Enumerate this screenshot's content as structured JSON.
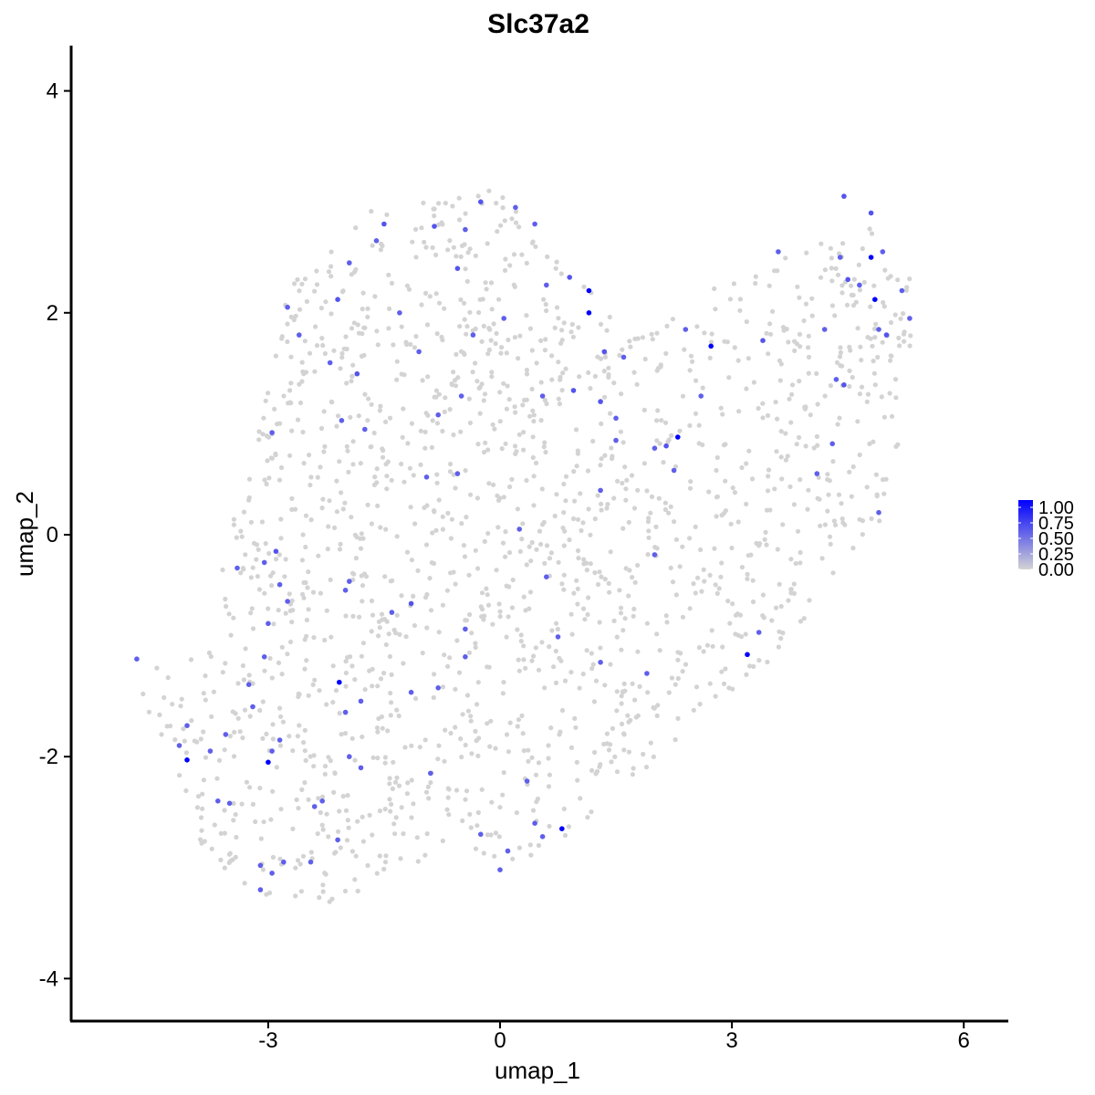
{
  "chart_data": {
    "type": "scatter",
    "title": "Slc37a2",
    "xlabel": "umap_1",
    "ylabel": "umap_2",
    "xlim": [
      -6.0,
      6.6
    ],
    "ylim": [
      -4.3,
      4.4
    ],
    "x_ticks": [
      -3,
      0,
      3,
      6
    ],
    "y_ticks": [
      -4,
      -2,
      0,
      2,
      4
    ],
    "x_tick_labels": [
      "-3",
      "0",
      "3",
      "6"
    ],
    "y_tick_labels": [
      "-4",
      "-2",
      "0",
      "2",
      "4"
    ],
    "grid": false,
    "colors": {
      "low": "#d3d3d3",
      "high": "#0000ff"
    },
    "legend": {
      "placement": "right",
      "type": "colorbar",
      "ticks": [
        1.0,
        0.75,
        0.5,
        0.25,
        0.0
      ],
      "labels": [
        "1.00",
        "0.75",
        "0.50",
        "0.25",
        "0.00"
      ]
    },
    "background_points": {
      "count": 1700
    },
    "expressing_points": [
      {
        "x": 1.15,
        "y": 2.2,
        "v": 1.0
      },
      {
        "x": 1.15,
        "y": 2.0,
        "v": 1.0
      },
      {
        "x": 2.73,
        "y": 1.7,
        "v": 1.0
      },
      {
        "x": 2.3,
        "y": 0.88,
        "v": 1.0
      },
      {
        "x": 4.8,
        "y": 2.5,
        "v": 1.0
      },
      {
        "x": 4.85,
        "y": 2.12,
        "v": 1.0
      },
      {
        "x": 3.2,
        "y": -1.08,
        "v": 1.0
      },
      {
        "x": -2.08,
        "y": -1.33,
        "v": 1.0
      },
      {
        "x": -3.0,
        "y": -2.05,
        "v": 1.0
      },
      {
        "x": -4.05,
        "y": -2.03,
        "v": 1.0
      },
      {
        "x": 0.8,
        "y": -2.65,
        "v": 1.0
      },
      {
        "x": -1.5,
        "y": 2.8,
        "v": 0.6
      },
      {
        "x": -0.85,
        "y": 2.78,
        "v": 0.6
      },
      {
        "x": -0.45,
        "y": 2.75,
        "v": 0.55
      },
      {
        "x": -0.25,
        "y": 3.0,
        "v": 0.6
      },
      {
        "x": 0.2,
        "y": 2.95,
        "v": 0.55
      },
      {
        "x": 0.45,
        "y": 2.8,
        "v": 0.55
      },
      {
        "x": -1.95,
        "y": 2.45,
        "v": 0.55
      },
      {
        "x": -1.6,
        "y": 2.65,
        "v": 0.55
      },
      {
        "x": -0.55,
        "y": 2.4,
        "v": 0.6
      },
      {
        "x": 0.6,
        "y": 2.25,
        "v": 0.55
      },
      {
        "x": 0.9,
        "y": 2.32,
        "v": 0.6
      },
      {
        "x": -2.1,
        "y": 2.12,
        "v": 0.6
      },
      {
        "x": -1.3,
        "y": 2.0,
        "v": 0.55
      },
      {
        "x": -2.75,
        "y": 2.05,
        "v": 0.55
      },
      {
        "x": -0.35,
        "y": 1.8,
        "v": 0.55
      },
      {
        "x": 0.05,
        "y": 1.95,
        "v": 0.55
      },
      {
        "x": -2.6,
        "y": 1.8,
        "v": 0.55
      },
      {
        "x": -2.2,
        "y": 1.55,
        "v": 0.55
      },
      {
        "x": -1.85,
        "y": 1.45,
        "v": 0.6
      },
      {
        "x": -1.05,
        "y": 1.65,
        "v": 0.55
      },
      {
        "x": -0.5,
        "y": 1.25,
        "v": 0.55
      },
      {
        "x": 0.55,
        "y": 1.25,
        "v": 0.55
      },
      {
        "x": 0.95,
        "y": 1.3,
        "v": 0.6
      },
      {
        "x": 1.35,
        "y": 1.65,
        "v": 0.6
      },
      {
        "x": 1.6,
        "y": 1.6,
        "v": 0.55
      },
      {
        "x": 1.3,
        "y": 1.2,
        "v": 0.6
      },
      {
        "x": 1.5,
        "y": 1.05,
        "v": 0.55
      },
      {
        "x": 1.5,
        "y": 0.85,
        "v": 0.55
      },
      {
        "x": 2.15,
        "y": 0.8,
        "v": 0.6
      },
      {
        "x": 2.0,
        "y": 0.78,
        "v": 0.55
      },
      {
        "x": 2.25,
        "y": 0.58,
        "v": 0.55
      },
      {
        "x": 2.4,
        "y": 1.85,
        "v": 0.55
      },
      {
        "x": 2.6,
        "y": 1.25,
        "v": 0.55
      },
      {
        "x": 3.4,
        "y": 1.75,
        "v": 0.6
      },
      {
        "x": 3.6,
        "y": 2.55,
        "v": 0.55
      },
      {
        "x": 4.2,
        "y": 1.85,
        "v": 0.55
      },
      {
        "x": 4.45,
        "y": 3.05,
        "v": 0.6
      },
      {
        "x": 4.8,
        "y": 2.9,
        "v": 0.6
      },
      {
        "x": 4.4,
        "y": 2.5,
        "v": 0.55
      },
      {
        "x": 4.95,
        "y": 2.55,
        "v": 0.55
      },
      {
        "x": 4.5,
        "y": 2.3,
        "v": 0.6
      },
      {
        "x": 4.65,
        "y": 2.25,
        "v": 0.55
      },
      {
        "x": 5.2,
        "y": 2.2,
        "v": 0.55
      },
      {
        "x": 5.3,
        "y": 1.95,
        "v": 0.55
      },
      {
        "x": 4.9,
        "y": 1.85,
        "v": 0.55
      },
      {
        "x": 5.0,
        "y": 1.8,
        "v": 0.6
      },
      {
        "x": 4.45,
        "y": 1.35,
        "v": 0.6
      },
      {
        "x": 4.35,
        "y": 1.4,
        "v": 0.55
      },
      {
        "x": 4.1,
        "y": 0.55,
        "v": 0.55
      },
      {
        "x": 4.3,
        "y": 0.82,
        "v": 0.55
      },
      {
        "x": 4.9,
        "y": 0.2,
        "v": 0.55
      },
      {
        "x": -2.95,
        "y": 0.92,
        "v": 0.55
      },
      {
        "x": -2.05,
        "y": 1.03,
        "v": 0.55
      },
      {
        "x": -1.75,
        "y": 0.95,
        "v": 0.55
      },
      {
        "x": -0.8,
        "y": 1.08,
        "v": 0.55
      },
      {
        "x": -0.95,
        "y": 0.52,
        "v": 0.55
      },
      {
        "x": -0.55,
        "y": 0.55,
        "v": 0.55
      },
      {
        "x": 1.3,
        "y": 0.4,
        "v": 0.55
      },
      {
        "x": 0.25,
        "y": 0.05,
        "v": 0.55
      },
      {
        "x": -2.9,
        "y": -0.15,
        "v": 0.6
      },
      {
        "x": -3.4,
        "y": -0.3,
        "v": 0.55
      },
      {
        "x": -3.05,
        "y": -0.25,
        "v": 0.55
      },
      {
        "x": -2.85,
        "y": -0.45,
        "v": 0.55
      },
      {
        "x": -2.75,
        "y": -0.6,
        "v": 0.55
      },
      {
        "x": -1.95,
        "y": -0.42,
        "v": 0.55
      },
      {
        "x": -2.0,
        "y": -0.5,
        "v": 0.55
      },
      {
        "x": -1.4,
        "y": -0.7,
        "v": 0.55
      },
      {
        "x": -1.15,
        "y": -0.62,
        "v": 0.6
      },
      {
        "x": 0.6,
        "y": -0.38,
        "v": 0.55
      },
      {
        "x": 2.0,
        "y": -0.18,
        "v": 0.55
      },
      {
        "x": 1.3,
        "y": -1.15,
        "v": 0.55
      },
      {
        "x": 1.9,
        "y": -1.25,
        "v": 0.55
      },
      {
        "x": 0.75,
        "y": -0.92,
        "v": 0.55
      },
      {
        "x": 3.35,
        "y": -0.88,
        "v": 0.55
      },
      {
        "x": -3.0,
        "y": -0.8,
        "v": 0.55
      },
      {
        "x": -3.05,
        "y": -1.1,
        "v": 0.55
      },
      {
        "x": -3.25,
        "y": -1.35,
        "v": 0.55
      },
      {
        "x": -3.2,
        "y": -1.55,
        "v": 0.55
      },
      {
        "x": -3.55,
        "y": -1.8,
        "v": 0.55
      },
      {
        "x": -3.75,
        "y": -1.95,
        "v": 0.55
      },
      {
        "x": -4.15,
        "y": -1.9,
        "v": 0.55
      },
      {
        "x": -4.05,
        "y": -1.72,
        "v": 0.55
      },
      {
        "x": -2.85,
        "y": -1.85,
        "v": 0.55
      },
      {
        "x": -2.95,
        "y": -1.95,
        "v": 0.55
      },
      {
        "x": -2.0,
        "y": -1.6,
        "v": 0.55
      },
      {
        "x": -1.8,
        "y": -1.5,
        "v": 0.55
      },
      {
        "x": -1.8,
        "y": -2.1,
        "v": 0.55
      },
      {
        "x": -1.95,
        "y": -2.0,
        "v": 0.55
      },
      {
        "x": -1.15,
        "y": -1.42,
        "v": 0.55
      },
      {
        "x": -0.8,
        "y": -1.38,
        "v": 0.55
      },
      {
        "x": -0.45,
        "y": -1.1,
        "v": 0.55
      },
      {
        "x": -0.45,
        "y": -0.85,
        "v": 0.55
      },
      {
        "x": -0.9,
        "y": -2.15,
        "v": 0.55
      },
      {
        "x": -2.3,
        "y": -2.4,
        "v": 0.55
      },
      {
        "x": -2.4,
        "y": -2.45,
        "v": 0.55
      },
      {
        "x": -3.65,
        "y": -2.4,
        "v": 0.55
      },
      {
        "x": -3.5,
        "y": -2.42,
        "v": 0.55
      },
      {
        "x": -2.1,
        "y": -2.75,
        "v": 0.55
      },
      {
        "x": -2.45,
        "y": -2.95,
        "v": 0.55
      },
      {
        "x": -2.8,
        "y": -2.95,
        "v": 0.55
      },
      {
        "x": -2.95,
        "y": -3.05,
        "v": 0.55
      },
      {
        "x": -3.1,
        "y": -2.98,
        "v": 0.55
      },
      {
        "x": -3.1,
        "y": -3.2,
        "v": 0.55
      },
      {
        "x": 0.35,
        "y": -2.22,
        "v": 0.55
      },
      {
        "x": 0.45,
        "y": -2.6,
        "v": 0.55
      },
      {
        "x": 0.55,
        "y": -2.72,
        "v": 0.55
      },
      {
        "x": -0.25,
        "y": -2.7,
        "v": 0.55
      },
      {
        "x": 0.1,
        "y": -2.85,
        "v": 0.55
      },
      {
        "x": 0.0,
        "y": -3.02,
        "v": 0.55
      },
      {
        "x": -4.7,
        "y": -1.12,
        "v": 0.55
      }
    ]
  }
}
